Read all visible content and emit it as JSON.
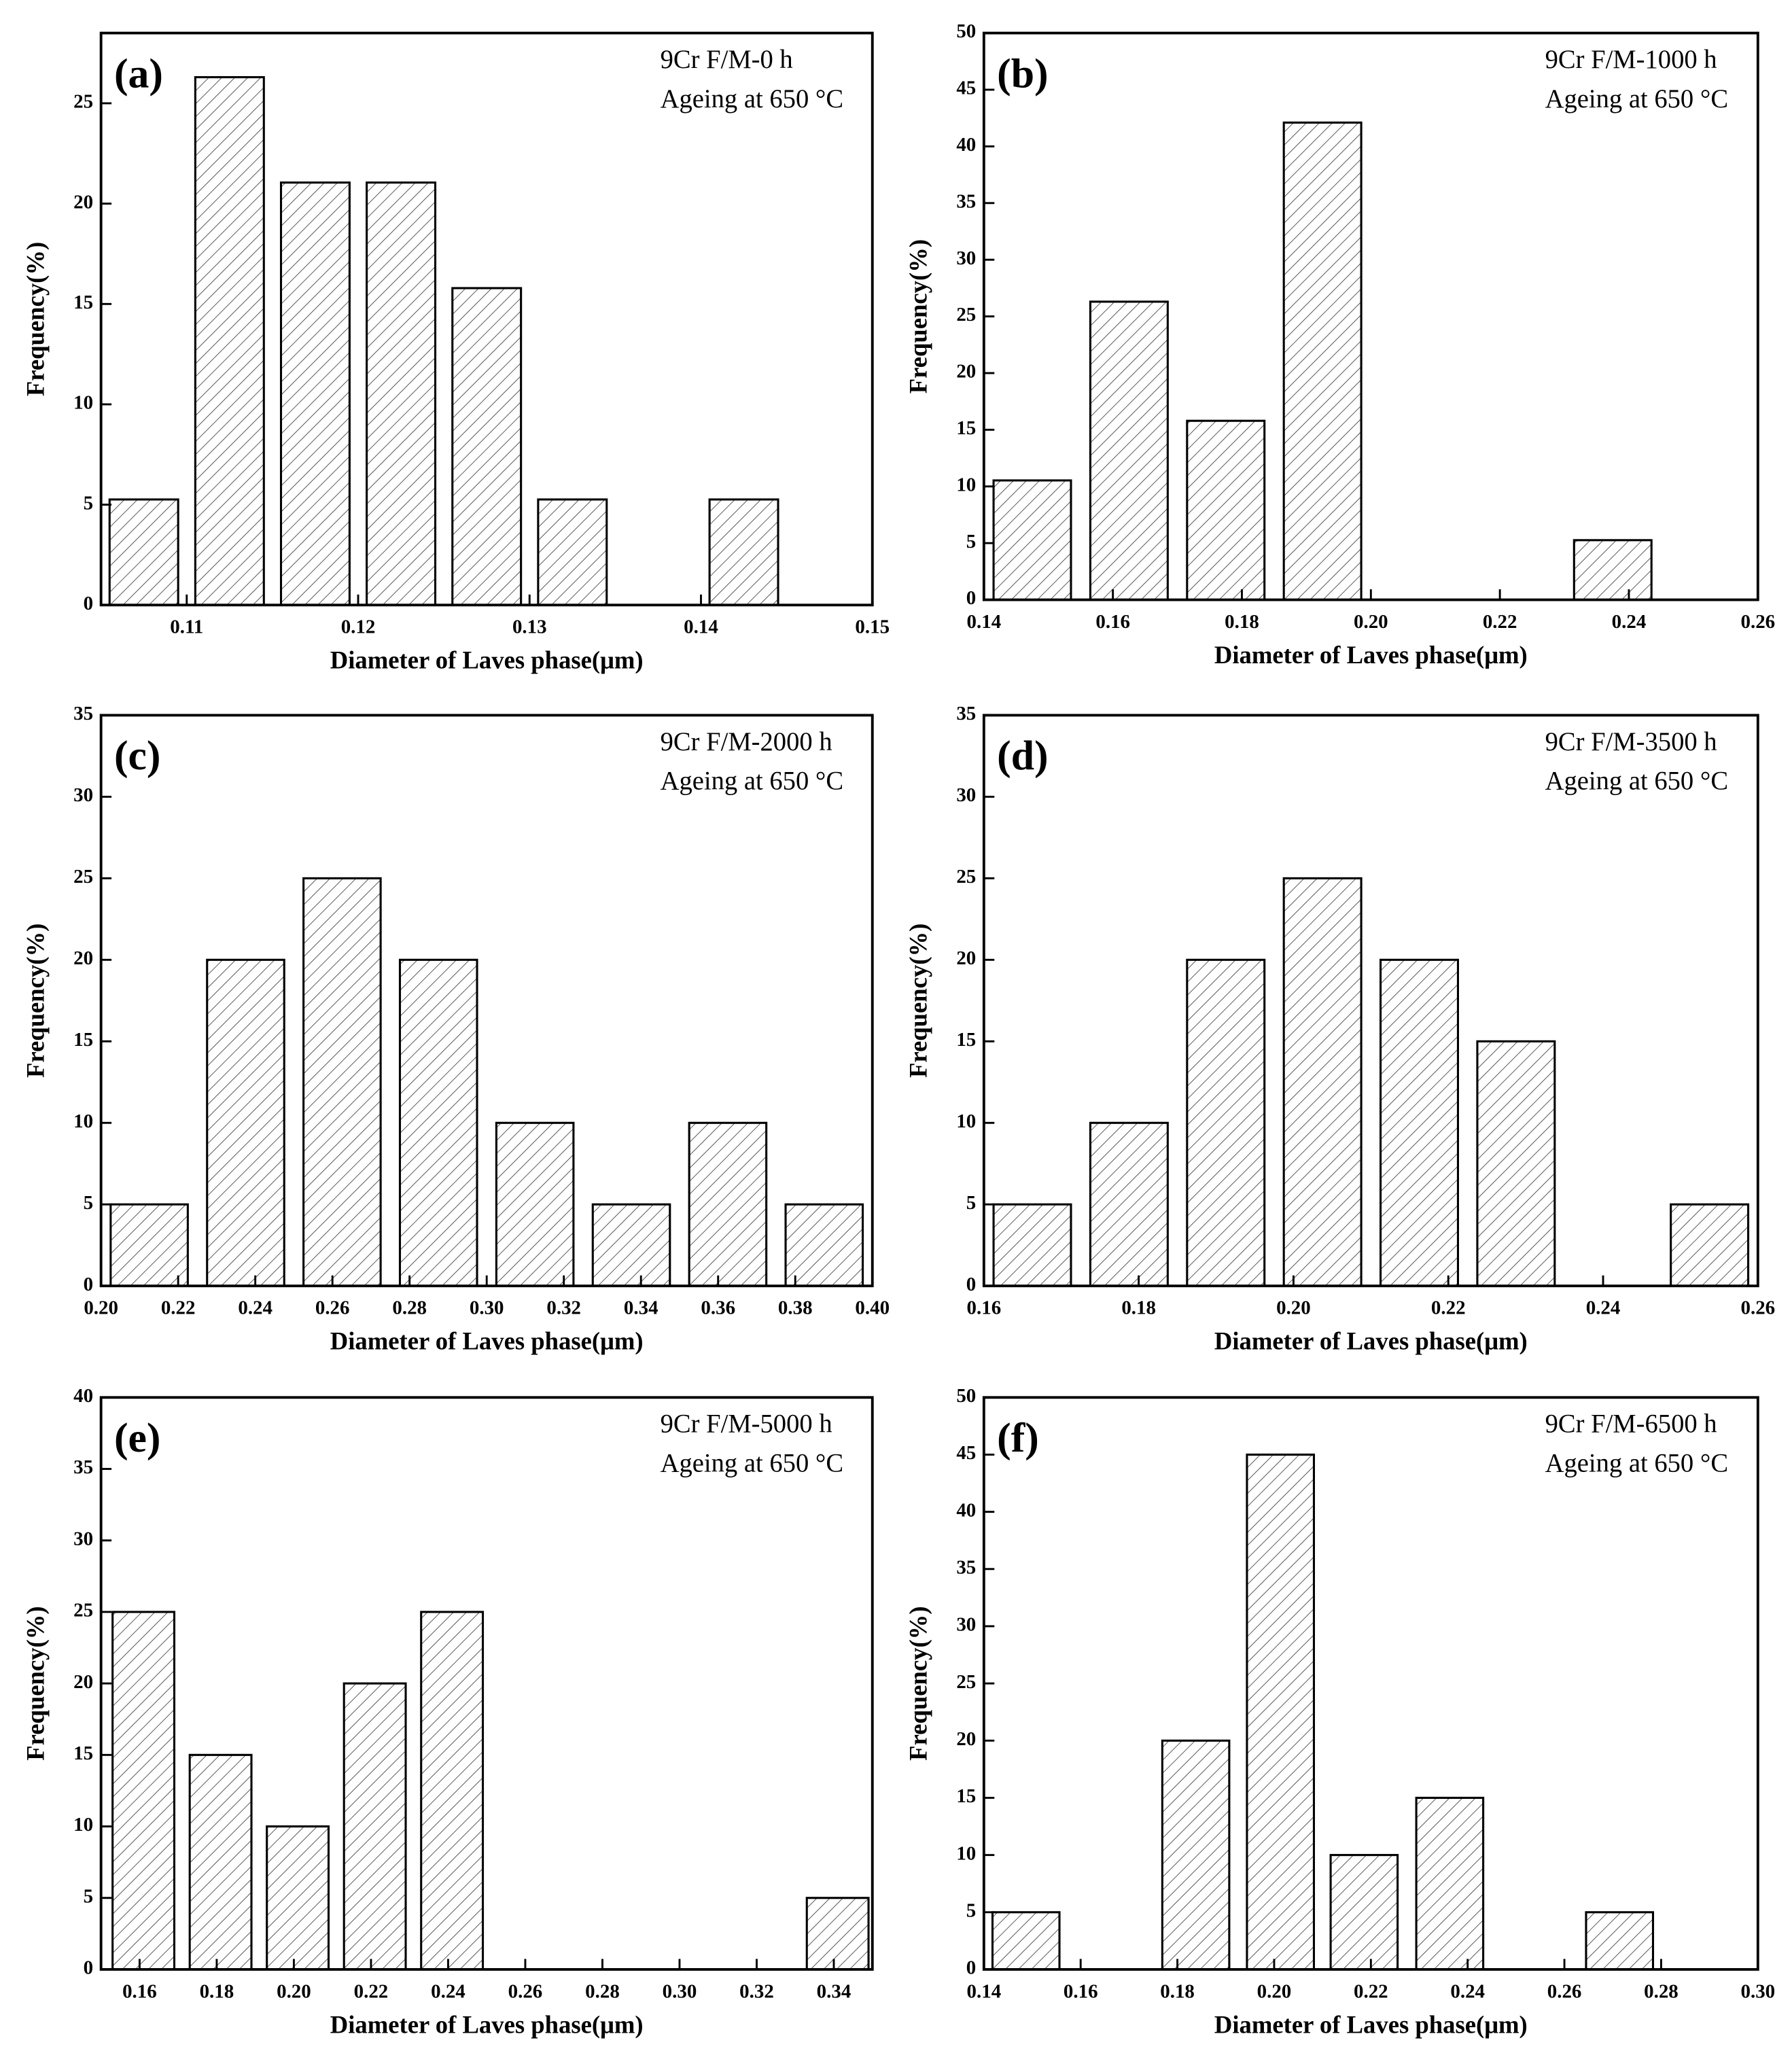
{
  "chart_data": [
    {
      "type": "bar",
      "panel": "(a)",
      "annotations": [
        "9Cr F/M-0 h",
        "Ageing at 650 °C"
      ],
      "x_label": "Diameter of Laves phase(μm)",
      "y_label": "Frequency(%)",
      "x": [
        0.1075,
        0.1125,
        0.1175,
        0.1225,
        0.1275,
        0.1325,
        0.1425
      ],
      "values": [
        5.26,
        26.3,
        21.05,
        21.05,
        15.79,
        5.26,
        5.26
      ],
      "color": "#000000",
      "xlim": [
        0.105,
        0.15
      ],
      "xticks": [
        0.11,
        0.12,
        0.13,
        0.14,
        0.15
      ],
      "ylim": [
        0,
        28.5
      ],
      "yticks": [
        0,
        5,
        10,
        15,
        20,
        25
      ]
    },
    {
      "type": "bar",
      "panel": "(b)",
      "annotations": [
        "9Cr F/M-1000 h",
        "Ageing at 650 °C"
      ],
      "x_label": "Diameter of Laves phase(μm)",
      "y_label": "Frequency(%)",
      "x": [
        0.1475,
        0.1625,
        0.1775,
        0.1925,
        0.2375
      ],
      "values": [
        10.53,
        26.3,
        15.79,
        42.1,
        5.26
      ],
      "color": "#000000",
      "xlim": [
        0.14,
        0.26
      ],
      "xticks": [
        0.14,
        0.16,
        0.18,
        {
          "value": 0.2,
          "label": "0.20"
        },
        0.22,
        0.24,
        0.26
      ],
      "ylim": [
        0,
        50
      ],
      "yticks": [
        0,
        5,
        10,
        15,
        20,
        25,
        30,
        35,
        40,
        45,
        50
      ]
    },
    {
      "type": "bar",
      "panel": "(c)",
      "annotations": [
        "9Cr F/M-2000 h",
        "Ageing at 650 °C"
      ],
      "x_label": "Diameter of Laves phase(μm)",
      "y_label": "Frequency(%)",
      "x": [
        0.2125,
        0.2375,
        0.2625,
        0.2875,
        0.3125,
        0.3375,
        0.3625,
        0.3875
      ],
      "values": [
        5,
        20,
        25,
        20,
        10,
        5,
        10,
        5
      ],
      "color": "#000000",
      "xlim": [
        0.2,
        0.4
      ],
      "xticks": [
        {
          "value": 0.2,
          "label": "0.20"
        },
        0.22,
        0.24,
        0.26,
        0.28,
        {
          "value": 0.3,
          "label": "0.30"
        },
        0.32,
        0.34,
        0.36,
        0.38,
        {
          "value": 0.4,
          "label": "0.40"
        }
      ],
      "ylim": [
        0,
        35
      ],
      "yticks": [
        0,
        5,
        10,
        15,
        20,
        25,
        30,
        35
      ]
    },
    {
      "type": "bar",
      "panel": "(d)",
      "annotations": [
        "9Cr F/M-3500 h",
        "Ageing at 650 °C"
      ],
      "x_label": "Diameter of Laves phase(μm)",
      "y_label": "Frequency(%)",
      "x": [
        0.16625,
        0.17875,
        0.19125,
        0.20375,
        0.21625,
        0.22875,
        0.25375
      ],
      "values": [
        5,
        10,
        20,
        25,
        20,
        15,
        5
      ],
      "color": "#000000",
      "xlim": [
        0.16,
        0.26
      ],
      "xticks": [
        0.16,
        0.18,
        {
          "value": 0.2,
          "label": "0.20"
        },
        0.22,
        0.24,
        0.26
      ],
      "ylim": [
        0,
        35
      ],
      "yticks": [
        0,
        5,
        10,
        15,
        20,
        25,
        30,
        35
      ]
    },
    {
      "type": "bar",
      "panel": "(e)",
      "annotations": [
        "9Cr F/M-5000 h",
        "Ageing at 650 °C"
      ],
      "x_label": "Diameter of Laves phase(μm)",
      "y_label": "Frequency(%)",
      "x": [
        0.161,
        0.181,
        0.201,
        0.221,
        0.241,
        0.341
      ],
      "values": [
        25,
        15,
        10,
        20,
        25,
        5
      ],
      "color": "#000000",
      "xlim": [
        0.15,
        0.35
      ],
      "xticks": [
        0.16,
        0.18,
        {
          "value": 0.2,
          "label": "0.20"
        },
        0.22,
        0.24,
        0.26,
        0.28,
        {
          "value": 0.3,
          "label": "0.30"
        },
        0.32,
        0.34
      ],
      "ylim": [
        0,
        40
      ],
      "yticks": [
        0,
        5,
        10,
        15,
        20,
        25,
        30,
        35,
        40
      ]
    },
    {
      "type": "bar",
      "panel": "(f)",
      "annotations": [
        "9Cr F/M-6500 h",
        "Ageing at 650 °C"
      ],
      "x_label": "Diameter of Laves phase(μm)",
      "y_label": "Frequency(%)",
      "x": [
        0.1487,
        0.1838,
        0.2013,
        0.2186,
        0.2363,
        0.2714
      ],
      "values": [
        5,
        20,
        45,
        10,
        15,
        5
      ],
      "color": "#000000",
      "xlim": [
        0.14,
        0.3
      ],
      "xticks": [
        0.14,
        0.16,
        0.18,
        {
          "value": 0.2,
          "label": "0.20"
        },
        0.22,
        0.24,
        0.26,
        0.28,
        {
          "value": 0.3,
          "label": "0.30"
        }
      ],
      "ylim": [
        0,
        50
      ],
      "yticks": [
        0,
        5,
        10,
        15,
        20,
        25,
        30,
        35,
        40,
        45,
        50
      ]
    }
  ]
}
